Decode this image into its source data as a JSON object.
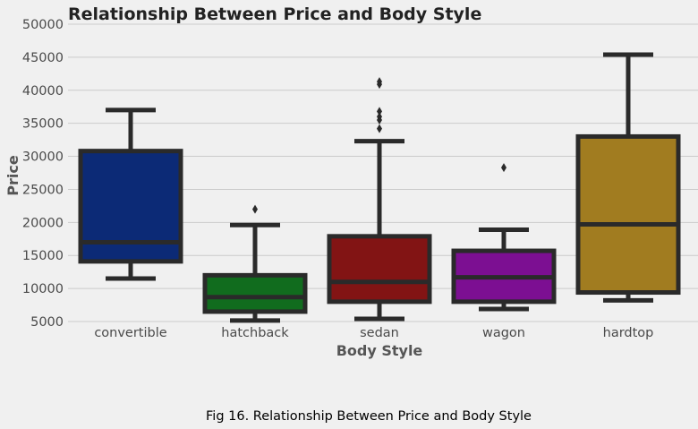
{
  "chart_data": {
    "type": "box",
    "title": "Relationship Between Price and Body Style",
    "xlabel": "Body Style",
    "ylabel": "Price",
    "caption": "Fig 16. Relationship Between Price and Body Style",
    "ylim": [
      5000,
      50000
    ],
    "yticks": [
      "5000",
      "10000",
      "15000",
      "20000",
      "25000",
      "30000",
      "35000",
      "40000",
      "45000",
      "50000"
    ],
    "grid": "horizontal",
    "categories": [
      {
        "label": "convertible",
        "color": "#0c2a76",
        "whisker_low": 11500,
        "q1": 14100,
        "median": 17000,
        "q3": 30800,
        "whisker_high": 37000,
        "outliers": []
      },
      {
        "label": "hatchback",
        "color": "#116c1e",
        "whisker_low": 5150,
        "q1": 6500,
        "median": 8700,
        "q3": 12000,
        "whisker_high": 19600,
        "outliers": [
          22000
        ]
      },
      {
        "label": "sedan",
        "color": "#821414",
        "whisker_low": 5400,
        "q1": 8000,
        "median": 11000,
        "q3": 17900,
        "whisker_high": 32300,
        "outliers": [
          34200,
          35500,
          36000,
          36800,
          40900,
          41300
        ]
      },
      {
        "label": "wagon",
        "color": "#7c0f92",
        "whisker_low": 6900,
        "q1": 8000,
        "median": 11700,
        "q3": 15700,
        "whisker_high": 18900,
        "outliers": [
          28300
        ]
      },
      {
        "label": "hardtop",
        "color": "#a17c20",
        "whisker_low": 8200,
        "q1": 9400,
        "median": 19700,
        "q3": 33000,
        "whisker_high": 45400,
        "outliers": []
      }
    ]
  }
}
